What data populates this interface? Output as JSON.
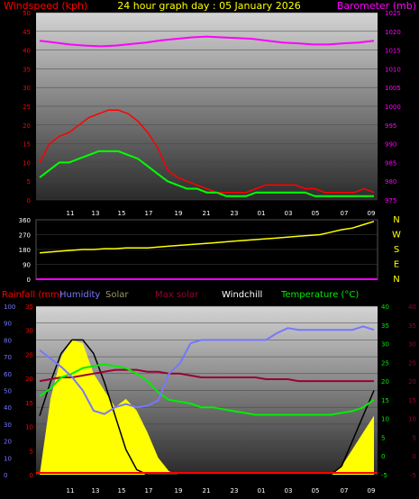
{
  "header": {
    "title": "24 hour graph day : 05 January 2026",
    "left_label": "Windspeed (kph)",
    "right_label": "Barometer (mb)"
  },
  "colors": {
    "wind_gust": "#ff0000",
    "wind_avg": "#00ff00",
    "barometer": "#ff00ff",
    "wind_dir": "#ffff00",
    "humidity": "#7777ff",
    "solar": "#ffff00",
    "max_solar": "#000000",
    "temperature": "#00ee00",
    "windchill": "#990033",
    "rainfall": "#ff0000",
    "left_axis": "#ff0000",
    "right_axis": "#ff00ff"
  },
  "chart_data": [
    {
      "type": "line",
      "name": "wind_barometer",
      "x_ticks": [
        "11",
        "13",
        "15",
        "17",
        "19",
        "21",
        "23",
        "01",
        "03",
        "05",
        "07",
        "09"
      ],
      "y_left": {
        "label": "Windspeed (kph)",
        "range": [
          0,
          50
        ],
        "ticks": [
          "0",
          "5",
          "10",
          "15",
          "20",
          "25",
          "30",
          "35",
          "40",
          "45",
          "50"
        ]
      },
      "y_right": {
        "label": "Barometer (mb)",
        "range": [
          975,
          1025
        ],
        "ticks": [
          "975",
          "980",
          "985",
          "990",
          "995",
          "1000",
          "1005",
          "1010",
          "1015",
          "1020",
          "1025"
        ]
      },
      "series": [
        {
          "name": "Wind gust",
          "axis": "left",
          "values": [
            10,
            15,
            17,
            18,
            20,
            22,
            23,
            24,
            24,
            23,
            21,
            18,
            14,
            8,
            6,
            5,
            4,
            3,
            2,
            2,
            2,
            2,
            3,
            4,
            4,
            4,
            4,
            3,
            3,
            2,
            2,
            2,
            2,
            3,
            2
          ]
        },
        {
          "name": "Wind avg",
          "axis": "left",
          "values": [
            6,
            8,
            10,
            10,
            11,
            12,
            13,
            13,
            13,
            12,
            11,
            9,
            7,
            5,
            4,
            3,
            3,
            2,
            2,
            1,
            1,
            1,
            2,
            2,
            2,
            2,
            2,
            2,
            1,
            1,
            1,
            1,
            1,
            1,
            1
          ]
        },
        {
          "name": "Barometer",
          "axis": "right",
          "values": [
            1017.5,
            1017,
            1016.5,
            1016.2,
            1016,
            1016.2,
            1016.6,
            1017,
            1017.6,
            1018,
            1018.4,
            1018.6,
            1018.4,
            1018.2,
            1018,
            1017.5,
            1017,
            1016.8,
            1016.5,
            1016.5,
            1016.8,
            1017,
            1017.5
          ]
        }
      ]
    },
    {
      "type": "line",
      "name": "wind_direction",
      "y_ticks": [
        "0",
        "90",
        "180",
        "270",
        "360"
      ],
      "compass": [
        "N",
        "W",
        "S",
        "E",
        "N"
      ],
      "range": [
        0,
        360
      ],
      "series": [
        {
          "name": "Wind direction",
          "values": [
            160,
            165,
            170,
            175,
            180,
            180,
            185,
            185,
            190,
            190,
            190,
            195,
            200,
            205,
            210,
            215,
            220,
            225,
            230,
            235,
            240,
            245,
            250,
            255,
            260,
            265,
            270,
            285,
            300,
            310,
            330,
            350
          ]
        }
      ]
    },
    {
      "type": "line",
      "name": "temp_humidity_solar",
      "legend": [
        "Rainfall (mm)",
        "Humidity",
        "Solar",
        "Max solar",
        "Windchill",
        "Temperature (°C)"
      ],
      "x_ticks": [
        "11",
        "13",
        "15",
        "17",
        "19",
        "21",
        "23",
        "01",
        "03",
        "05",
        "07",
        "09"
      ],
      "y_left": {
        "range": [
          0,
          100
        ],
        "ticks": [
          "0",
          "10",
          "20",
          "30",
          "40",
          "50",
          "60",
          "70",
          "80",
          "90",
          "100"
        ]
      },
      "y_left2": {
        "range": [
          0,
          35
        ],
        "ticks": [
          "0",
          "5",
          "10",
          "15",
          "20",
          "25",
          "30",
          "35"
        ]
      },
      "y_right": {
        "range": [
          -5,
          40
        ],
        "ticks": [
          "-5",
          "0",
          "5",
          "10",
          "15",
          "20",
          "25",
          "30",
          "35",
          "40"
        ]
      },
      "y_right2": {
        "range": [
          -5,
          40
        ],
        "ticks": [
          "-5",
          "0",
          "5",
          "10",
          "15",
          "20",
          "25",
          "30",
          "35",
          "40"
        ]
      },
      "series": [
        {
          "name": "Humidity",
          "values": [
            74,
            69,
            64,
            58,
            50,
            38,
            36,
            40,
            42,
            40,
            41,
            44,
            60,
            66,
            78,
            80,
            80,
            80,
            80,
            80,
            80,
            80,
            84,
            87,
            86,
            86,
            86,
            86,
            86,
            86,
            88,
            86
          ]
        },
        {
          "name": "Temperature (°C)",
          "values": [
            16,
            18,
            21,
            22,
            23.5,
            24,
            24.5,
            24,
            23.5,
            22,
            20,
            17,
            15,
            14.5,
            14,
            13,
            13,
            12.5,
            12,
            11.5,
            11,
            11,
            11,
            11,
            11,
            11,
            11,
            11,
            11.5,
            12,
            13,
            15
          ]
        },
        {
          "name": "Windchill",
          "values": [
            20,
            20.5,
            21,
            21,
            21.5,
            22,
            22.5,
            23,
            23,
            23,
            22.5,
            22.5,
            22,
            22,
            21.5,
            21,
            21,
            21,
            21,
            21,
            21,
            20.5,
            20.5,
            20.5,
            20,
            20,
            20,
            20,
            20,
            20,
            20,
            20
          ]
        },
        {
          "name": "Solar",
          "values": [
            0,
            0.45,
            0.7,
            0.8,
            0.78,
            0.6,
            0.5,
            0.4,
            0.45,
            0.38,
            0.25,
            0.1,
            0.02,
            0,
            0,
            0,
            0,
            0,
            0,
            0,
            0,
            0,
            0,
            0,
            0,
            0,
            0,
            0,
            0.05,
            0.15,
            0.25,
            0.35
          ]
        },
        {
          "name": "Max solar",
          "values": [
            0.35,
            0.55,
            0.72,
            0.8,
            0.8,
            0.72,
            0.55,
            0.35,
            0.15,
            0.03,
            0,
            0,
            0,
            0,
            0,
            0,
            0,
            0,
            0,
            0,
            0,
            0,
            0,
            0,
            0,
            0,
            0,
            0,
            0.05,
            0.2,
            0.35,
            0.5
          ]
        },
        {
          "name": "Rainfall (mm)",
          "values": [
            0,
            0,
            0,
            0,
            0,
            0,
            0,
            0,
            0,
            0,
            0,
            0,
            0,
            0,
            0,
            0,
            0,
            0,
            0,
            0,
            0,
            0,
            0,
            0,
            0,
            0,
            0,
            0,
            0,
            0,
            0,
            0
          ]
        }
      ]
    }
  ]
}
